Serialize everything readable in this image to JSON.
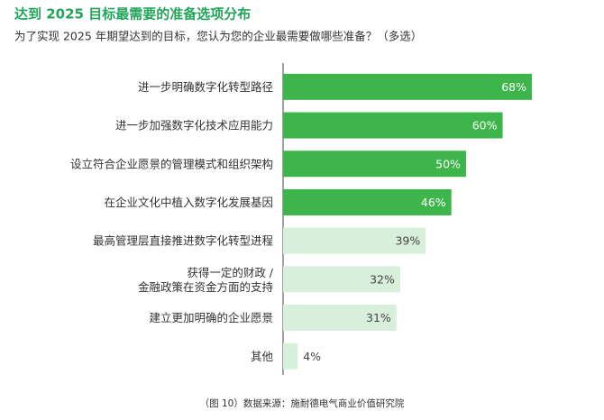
{
  "chart_data": {
    "type": "bar",
    "orientation": "horizontal",
    "title": "达到 2025 目标最需要的准备选项分布",
    "subtitle": "为了实现 2025 年期望达到的目标，您认为您的企业最需要做哪些准备？（多选）",
    "categories": [
      "进一步明确数字化转型路径",
      "进一步加强数字化技术应用能力",
      "设立符合企业愿景的管理模式和组织架构",
      "在企业文化中植入数字化发展基因",
      "最高管理层直接推进数字化转型进程",
      "获得一定的财政 /\n金融政策在资金方面的支持",
      "建立更加明确的企业愿景",
      "其他"
    ],
    "values": [
      68,
      60,
      50,
      46,
      39,
      32,
      31,
      4
    ],
    "value_labels": [
      "68%",
      "60%",
      "50%",
      "46%",
      "39%",
      "32%",
      "31%",
      "4%"
    ],
    "colors": [
      "#3db54a",
      "#3db54a",
      "#3db54a",
      "#3db54a",
      "#d8efdb",
      "#d8efdb",
      "#d8efdb",
      "#d8efdb"
    ],
    "source": "（图 10）数据来源：施耐德电气商业价值研究院"
  }
}
